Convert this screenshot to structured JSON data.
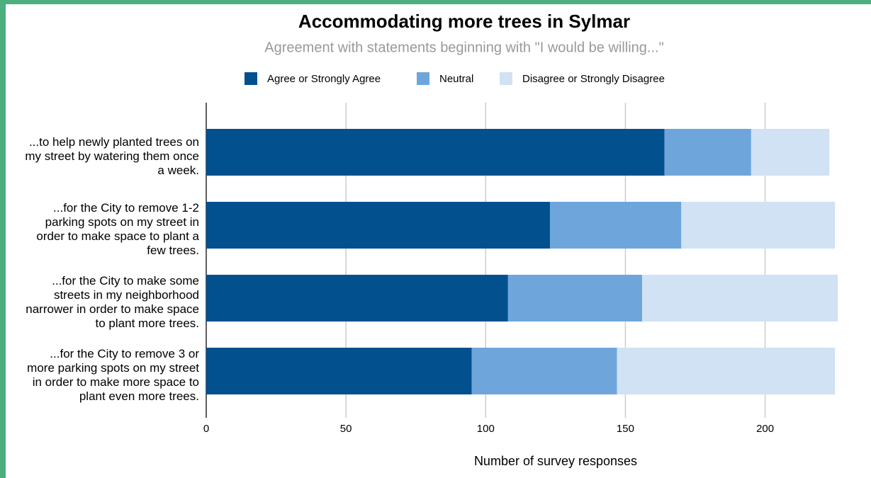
{
  "chart_data": {
    "type": "stacked_bar_horizontal",
    "title": "Accommodating more trees in Sylmar",
    "subtitle": "Agreement with statements beginning with \"I would be willing...\"",
    "x_label": "Number of survey responses",
    "categories": [
      "...to help newly planted trees on my street by watering them once a week.",
      "...for the City to remove 1-2 parking spots on my street in order to make space to plant a few trees.",
      "...for the City to make some streets in my neighborhood narrower in order to make space to plant more trees.",
      "...for the City to remove 3 or more parking spots on my street in order to make more space to plant even more trees."
    ],
    "series": [
      {
        "name": "Agree or Strongly Agree",
        "color": "#03508f",
        "values": [
          164,
          123,
          108,
          95
        ]
      },
      {
        "name": "Neutral",
        "color": "#6ea6dc",
        "values": [
          31,
          47,
          48,
          52
        ]
      },
      {
        "name": "Disagree or Strongly Disagree",
        "color": "#d0e2f3",
        "values": [
          28,
          55,
          70,
          78
        ]
      }
    ],
    "xlim": [
      0,
      228
    ],
    "xticks": [
      0,
      50,
      100,
      150,
      200
    ],
    "grid": true,
    "legend": "top"
  }
}
